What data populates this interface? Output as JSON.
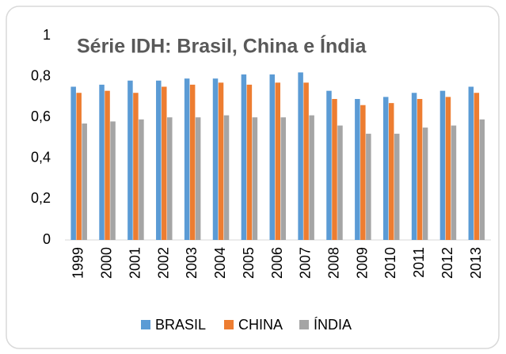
{
  "chart_data": {
    "type": "bar",
    "title": "Série IDH: Brasil, China e Índia",
    "categories": [
      "1999",
      "2000",
      "2001",
      "2002",
      "2003",
      "2004",
      "2005",
      "2006",
      "2007",
      "2008",
      "2009",
      "2010",
      "2011",
      "2012",
      "2013"
    ],
    "series": [
      {
        "name": "BRASIL",
        "color": "#5b9bd5",
        "values": [
          0.75,
          0.76,
          0.78,
          0.78,
          0.79,
          0.79,
          0.81,
          0.81,
          0.82,
          0.73,
          0.69,
          0.7,
          0.72,
          0.73,
          0.75
        ]
      },
      {
        "name": "CHINA",
        "color": "#ed7d31",
        "values": [
          0.72,
          0.73,
          0.72,
          0.75,
          0.76,
          0.77,
          0.76,
          0.77,
          0.77,
          0.69,
          0.66,
          0.67,
          0.69,
          0.7,
          0.72
        ]
      },
      {
        "name": "ÍNDIA",
        "color": "#a5a5a5",
        "values": [
          0.57,
          0.58,
          0.59,
          0.6,
          0.6,
          0.61,
          0.6,
          0.6,
          0.61,
          0.56,
          0.52,
          0.52,
          0.55,
          0.56,
          0.59
        ]
      }
    ],
    "ylim": [
      0,
      1
    ],
    "yticks": [
      0,
      {
        "value": 0.2,
        "label": "0,2"
      },
      {
        "value": 0.4,
        "label": "0,4"
      },
      {
        "value": 0.6,
        "label": "0,6"
      },
      {
        "value": 0.8,
        "label": "0,8"
      },
      1
    ],
    "grid": false,
    "legend": "bottom"
  }
}
